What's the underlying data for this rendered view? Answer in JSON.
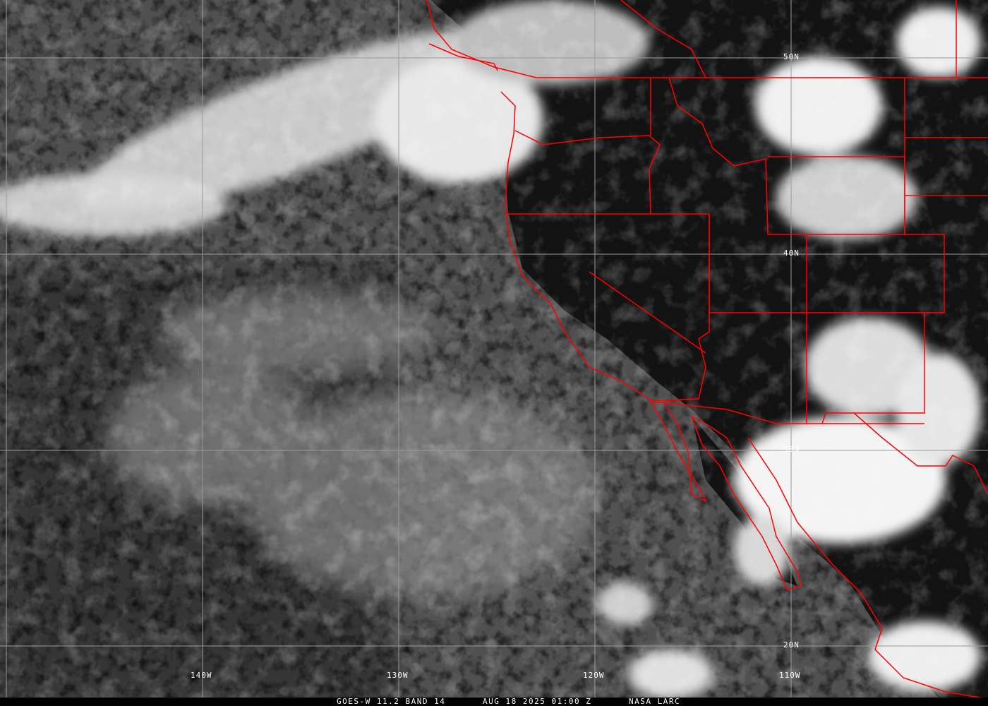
{
  "image": {
    "satellite": "GOES-W",
    "product": "11.2 BAND 14",
    "caption": {
      "left": "GOES-W 11.2 BAND 14",
      "center": "AUG 18 2025 01:00 Z",
      "right": "NASA LARC"
    },
    "grid_labels": {
      "longitude": [
        "140W",
        "130W",
        "120W",
        "110W"
      ],
      "latitude": [
        "50N",
        "40N",
        "30N",
        "20N"
      ]
    },
    "colors": {
      "borders": "#ff0000",
      "grid": "#9a9a9a",
      "text": "#ffffff"
    }
  }
}
